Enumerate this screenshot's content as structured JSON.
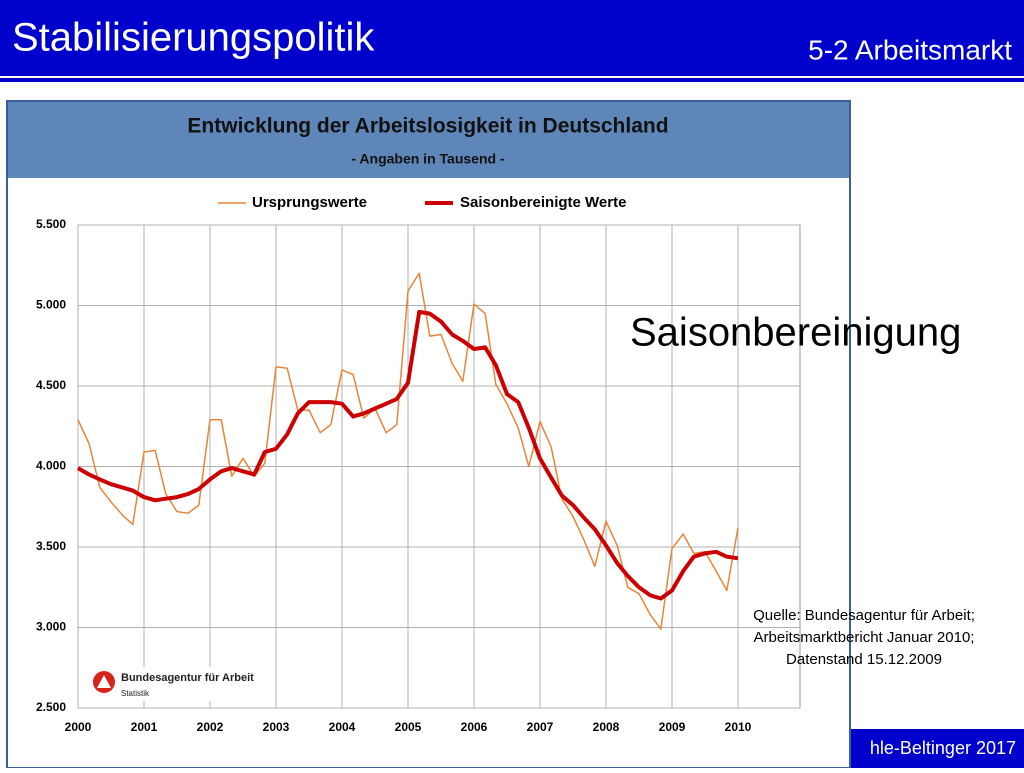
{
  "slide": {
    "title": "Stabilisierungspolitik",
    "subtitle": "5-2 Arbeitsmarkt",
    "annotation": "Saisonbereinigung",
    "source": [
      "Quelle: Bundesagentur für Arbeit;",
      "Arbeitsmarktbericht Januar 2010;",
      "Datenstand 15.12.2009"
    ],
    "footer": "hle-Beltinger 2017",
    "logo": {
      "name": "Bundesagentur für Arbeit",
      "sub": "Statistik"
    }
  },
  "chart_data": {
    "type": "line",
    "title": "Entwicklung der Arbeitslosigkeit in Deutschland",
    "subtitle": "- Angaben in Tausend -",
    "x": [
      2000,
      2000.17,
      2000.33,
      2000.5,
      2000.67,
      2000.83,
      2001,
      2001.17,
      2001.33,
      2001.5,
      2001.67,
      2001.83,
      2002,
      2002.17,
      2002.33,
      2002.5,
      2002.67,
      2002.83,
      2003,
      2003.17,
      2003.33,
      2003.5,
      2003.67,
      2003.83,
      2004,
      2004.17,
      2004.33,
      2004.5,
      2004.67,
      2004.83,
      2005,
      2005.17,
      2005.33,
      2005.5,
      2005.67,
      2005.83,
      2006,
      2006.17,
      2006.33,
      2006.5,
      2006.67,
      2006.83,
      2007,
      2007.17,
      2007.33,
      2007.5,
      2007.67,
      2007.83,
      2008,
      2008.17,
      2008.33,
      2008.5,
      2008.67,
      2008.83,
      2009,
      2009.17,
      2009.33,
      2009.5,
      2009.67,
      2009.83,
      2010
    ],
    "series": [
      {
        "name": "Ursprungswerte",
        "color": "#e8853a",
        "width": 1.5,
        "values": [
          4290,
          4140,
          3870,
          3780,
          3700,
          3640,
          4090,
          4100,
          3830,
          3720,
          3710,
          3760,
          4290,
          4290,
          3940,
          4050,
          3940,
          4020,
          4620,
          4610,
          4350,
          4350,
          4210,
          4260,
          4600,
          4570,
          4300,
          4360,
          4210,
          4260,
          5090,
          5200,
          4810,
          4820,
          4640,
          4530,
          5010,
          4950,
          4510,
          4390,
          4240,
          4000,
          4280,
          4120,
          3800,
          3690,
          3540,
          3380,
          3660,
          3510,
          3250,
          3210,
          3080,
          2990,
          3490,
          3580,
          3460,
          3470,
          3350,
          3230,
          3620
        ]
      },
      {
        "name": "Saisonbereinigte Werte",
        "color": "#cc0000",
        "width": 4,
        "values": [
          3990,
          3950,
          3920,
          3890,
          3870,
          3850,
          3810,
          3790,
          3800,
          3810,
          3830,
          3860,
          3920,
          3970,
          3990,
          3970,
          3950,
          4090,
          4110,
          4200,
          4330,
          4400,
          4400,
          4400,
          4390,
          4310,
          4330,
          4360,
          4390,
          4420,
          4520,
          4960,
          4950,
          4900,
          4820,
          4780,
          4730,
          4740,
          4630,
          4450,
          4400,
          4240,
          4050,
          3930,
          3820,
          3760,
          3680,
          3610,
          3510,
          3400,
          3320,
          3250,
          3200,
          3180,
          3230,
          3350,
          3440,
          3460,
          3470,
          3440,
          3430
        ]
      }
    ],
    "xlim": [
      2000,
      2011
    ],
    "xticks": [
      2000,
      2001,
      2002,
      2003,
      2004,
      2005,
      2006,
      2007,
      2008,
      2009,
      2010
    ],
    "ylim": [
      2500,
      5500
    ],
    "yticks": [
      {
        "value": 2500,
        "label": "2.500"
      },
      {
        "value": 3000,
        "label": "3.000"
      },
      {
        "value": 3500,
        "label": "3.500"
      },
      {
        "value": 4000,
        "label": "4.000"
      },
      {
        "value": 4500,
        "label": "4.500"
      },
      {
        "value": 5000,
        "label": "5.000"
      },
      {
        "value": 5500,
        "label": "5.500"
      }
    ],
    "grid": true
  }
}
